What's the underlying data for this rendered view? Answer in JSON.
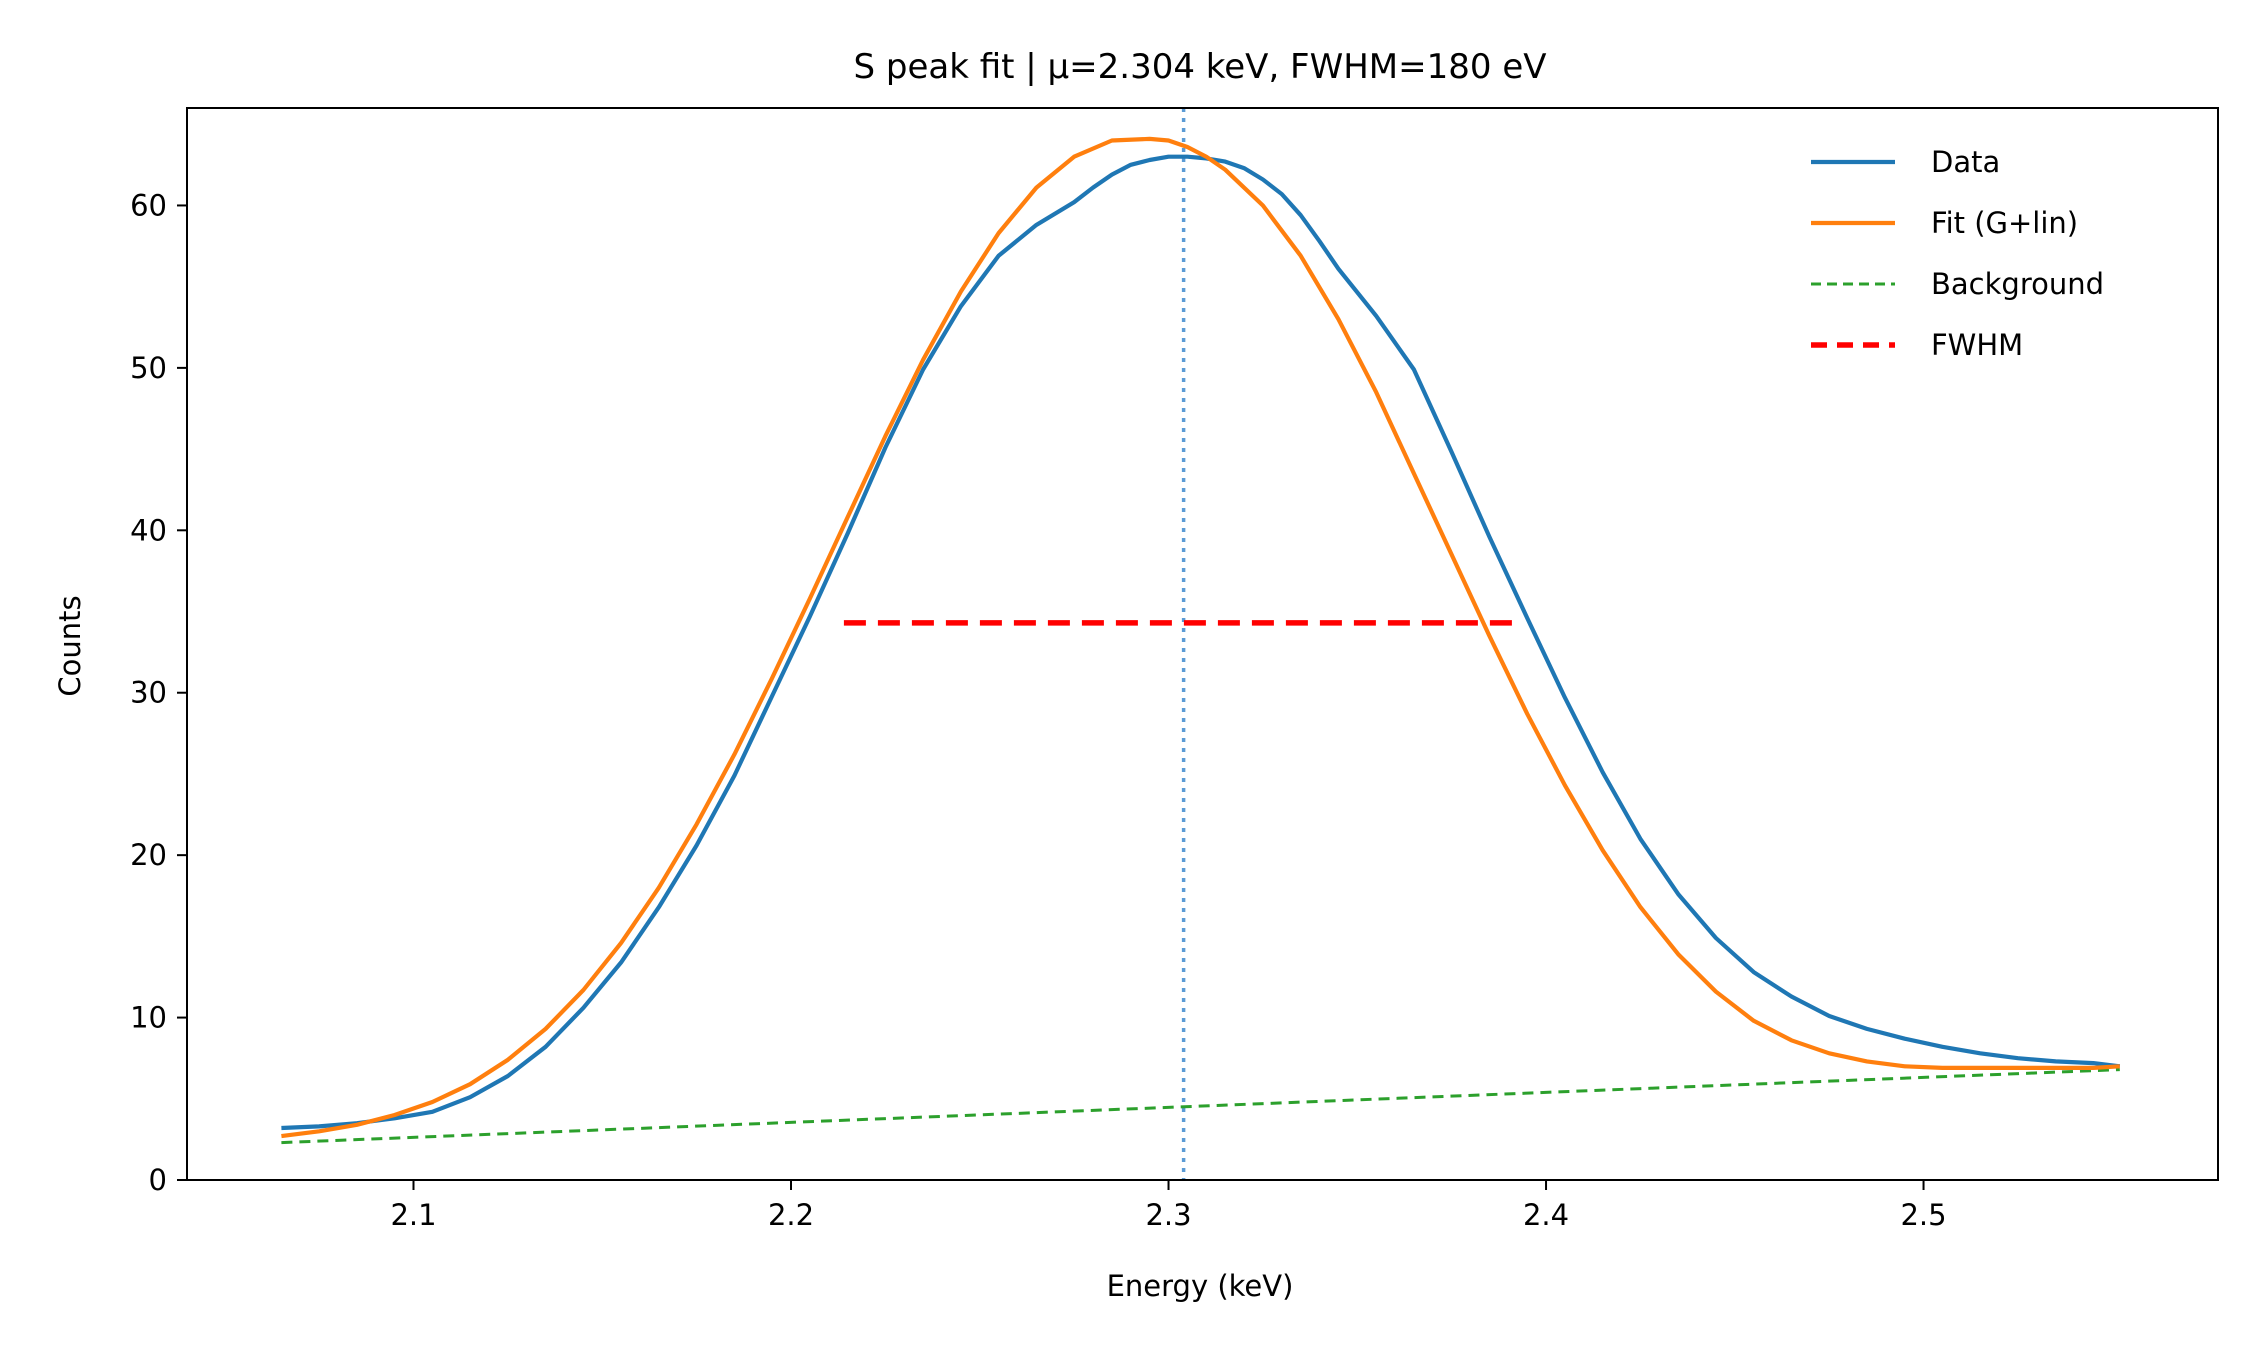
{
  "chart_data": {
    "type": "line",
    "title": "S peak fit | μ=2.304 keV, FWHM=180 eV",
    "xlabel": "Energy (keV)",
    "ylabel": "Counts",
    "xlim": [
      2.04,
      2.578
    ],
    "ylim": [
      0,
      66
    ],
    "xticks": [
      2.1,
      2.2,
      2.3,
      2.4,
      2.5
    ],
    "xtick_labels": [
      "2.1",
      "2.2",
      "2.3",
      "2.4",
      "2.5"
    ],
    "yticks": [
      0,
      10,
      20,
      30,
      40,
      50,
      60
    ],
    "ytick_labels": [
      "0",
      "10",
      "20",
      "30",
      "40",
      "50",
      "60"
    ],
    "grid": false,
    "legend_position": "top-right",
    "colors": {
      "data": "#1f77b4",
      "fit": "#ff7f0e",
      "background": "#2ca02c",
      "fwhm": "#ff0000",
      "center": "#5b9bd5"
    },
    "series": [
      {
        "name": "Data",
        "style": "solid",
        "x": [
          2.065,
          2.075,
          2.085,
          2.095,
          2.105,
          2.115,
          2.125,
          2.135,
          2.145,
          2.155,
          2.165,
          2.175,
          2.185,
          2.195,
          2.205,
          2.215,
          2.225,
          2.235,
          2.245,
          2.255,
          2.265,
          2.275,
          2.28,
          2.285,
          2.29,
          2.295,
          2.3,
          2.305,
          2.31,
          2.315,
          2.32,
          2.325,
          2.33,
          2.335,
          2.34,
          2.345,
          2.355,
          2.365,
          2.375,
          2.385,
          2.395,
          2.405,
          2.415,
          2.425,
          2.435,
          2.445,
          2.455,
          2.465,
          2.475,
          2.485,
          2.495,
          2.505,
          2.515,
          2.525,
          2.535,
          2.545,
          2.552
        ],
        "y": [
          3.2,
          3.3,
          3.5,
          3.8,
          4.2,
          5.1,
          6.4,
          8.2,
          10.6,
          13.4,
          16.8,
          20.6,
          24.9,
          29.8,
          34.7,
          39.8,
          45.1,
          49.9,
          53.8,
          56.9,
          58.8,
          60.2,
          61.1,
          61.9,
          62.5,
          62.8,
          63.0,
          63.0,
          62.9,
          62.7,
          62.3,
          61.6,
          60.7,
          59.4,
          57.8,
          56.1,
          53.2,
          49.9,
          44.8,
          39.6,
          34.6,
          29.7,
          25.1,
          21.0,
          17.6,
          14.9,
          12.8,
          11.3,
          10.1,
          9.3,
          8.7,
          8.2,
          7.8,
          7.5,
          7.3,
          7.2,
          7.0
        ]
      },
      {
        "name": "Fit (G+lin)",
        "style": "solid",
        "x": [
          2.065,
          2.075,
          2.085,
          2.095,
          2.105,
          2.115,
          2.125,
          2.135,
          2.145,
          2.155,
          2.165,
          2.175,
          2.185,
          2.195,
          2.205,
          2.215,
          2.225,
          2.235,
          2.245,
          2.255,
          2.265,
          2.275,
          2.285,
          2.295,
          2.3,
          2.305,
          2.31,
          2.315,
          2.325,
          2.335,
          2.345,
          2.355,
          2.365,
          2.375,
          2.385,
          2.395,
          2.405,
          2.415,
          2.425,
          2.435,
          2.445,
          2.455,
          2.465,
          2.475,
          2.485,
          2.495,
          2.505,
          2.515,
          2.525,
          2.535,
          2.545,
          2.552
        ],
        "y": [
          2.7,
          3.0,
          3.4,
          4.0,
          4.8,
          5.9,
          7.4,
          9.3,
          11.7,
          14.6,
          18.0,
          21.9,
          26.2,
          30.9,
          35.8,
          40.8,
          45.8,
          50.5,
          54.7,
          58.3,
          61.1,
          63.0,
          64.0,
          64.1,
          64.0,
          63.6,
          63.0,
          62.2,
          60.0,
          56.9,
          53.0,
          48.5,
          43.5,
          38.5,
          33.5,
          28.7,
          24.3,
          20.3,
          16.8,
          13.9,
          11.6,
          9.8,
          8.6,
          7.8,
          7.3,
          7.0,
          6.9,
          6.9,
          6.9,
          6.9,
          6.9,
          7.0
        ]
      },
      {
        "name": "Background",
        "style": "dashed",
        "x": [
          2.065,
          2.552
        ],
        "y": [
          2.3,
          6.8
        ]
      },
      {
        "name": "FWHM",
        "style": "dashed",
        "x": [
          2.214,
          2.394
        ],
        "y": [
          34.3,
          34.3
        ]
      }
    ],
    "center_line": {
      "x": 2.304,
      "style": "dotted"
    }
  }
}
